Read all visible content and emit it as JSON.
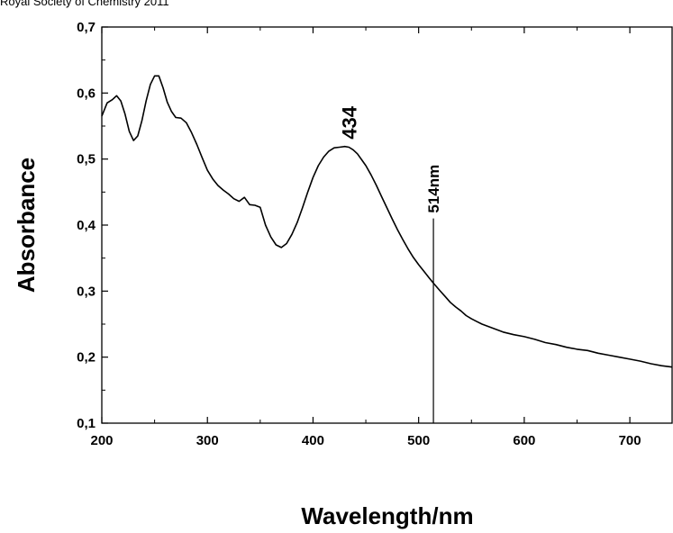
{
  "header": {
    "text": "Royal Society of Chemistry 2011"
  },
  "chart_data": {
    "type": "line",
    "xlabel": "Wavelength/nm",
    "ylabel": "Absorbance",
    "xlim": [
      200,
      740
    ],
    "ylim": [
      0.1,
      0.7
    ],
    "x_ticks": [
      200,
      300,
      400,
      500,
      600,
      700
    ],
    "x_tick_labels": [
      "200",
      "300",
      "400",
      "500",
      "600",
      "700"
    ],
    "y_ticks": [
      0.1,
      0.2,
      0.3,
      0.4,
      0.5,
      0.6,
      0.7
    ],
    "y_tick_labels": [
      "0,1",
      "0,2",
      "0,3",
      "0,4",
      "0,5",
      "0,6",
      "0,7"
    ],
    "grid": false,
    "series": [
      {
        "x": [
          200,
          205,
          210,
          214,
          218,
          222,
          226,
          230,
          234,
          238,
          242,
          246,
          250,
          254,
          258,
          262,
          266,
          270,
          275,
          280,
          285,
          290,
          295,
          300,
          305,
          310,
          315,
          320,
          325,
          330,
          335,
          340,
          345,
          350,
          355,
          360,
          365,
          370,
          375,
          380,
          385,
          390,
          395,
          400,
          405,
          410,
          415,
          420,
          425,
          430,
          434,
          438,
          442,
          446,
          450,
          455,
          460,
          465,
          470,
          475,
          480,
          485,
          490,
          495,
          500,
          505,
          510,
          514,
          520,
          525,
          530,
          535,
          540,
          545,
          550,
          555,
          560,
          570,
          580,
          590,
          600,
          610,
          620,
          630,
          640,
          650,
          660,
          670,
          680,
          690,
          700,
          710,
          720,
          730,
          740
        ],
        "y": [
          0.565,
          0.585,
          0.59,
          0.596,
          0.588,
          0.568,
          0.542,
          0.528,
          0.535,
          0.558,
          0.588,
          0.613,
          0.626,
          0.626,
          0.608,
          0.586,
          0.572,
          0.563,
          0.562,
          0.555,
          0.54,
          0.522,
          0.502,
          0.483,
          0.47,
          0.46,
          0.453,
          0.447,
          0.44,
          0.436,
          0.442,
          0.431,
          0.43,
          0.427,
          0.4,
          0.382,
          0.37,
          0.366,
          0.372,
          0.386,
          0.404,
          0.426,
          0.45,
          0.472,
          0.49,
          0.503,
          0.512,
          0.517,
          0.518,
          0.519,
          0.518,
          0.514,
          0.508,
          0.499,
          0.49,
          0.476,
          0.46,
          0.443,
          0.426,
          0.409,
          0.393,
          0.378,
          0.364,
          0.351,
          0.34,
          0.33,
          0.32,
          0.312,
          0.301,
          0.292,
          0.283,
          0.276,
          0.27,
          0.263,
          0.258,
          0.254,
          0.25,
          0.244,
          0.238,
          0.234,
          0.231,
          0.227,
          0.222,
          0.219,
          0.215,
          0.212,
          0.21,
          0.206,
          0.203,
          0.2,
          0.197,
          0.194,
          0.19,
          0.187,
          0.185
        ]
      }
    ],
    "annotations": {
      "peak_label": "434",
      "peak_x": 434,
      "peak_y": 0.519,
      "marker_label": "514nm",
      "marker_x": 514,
      "marker_top_y": 0.41
    }
  }
}
